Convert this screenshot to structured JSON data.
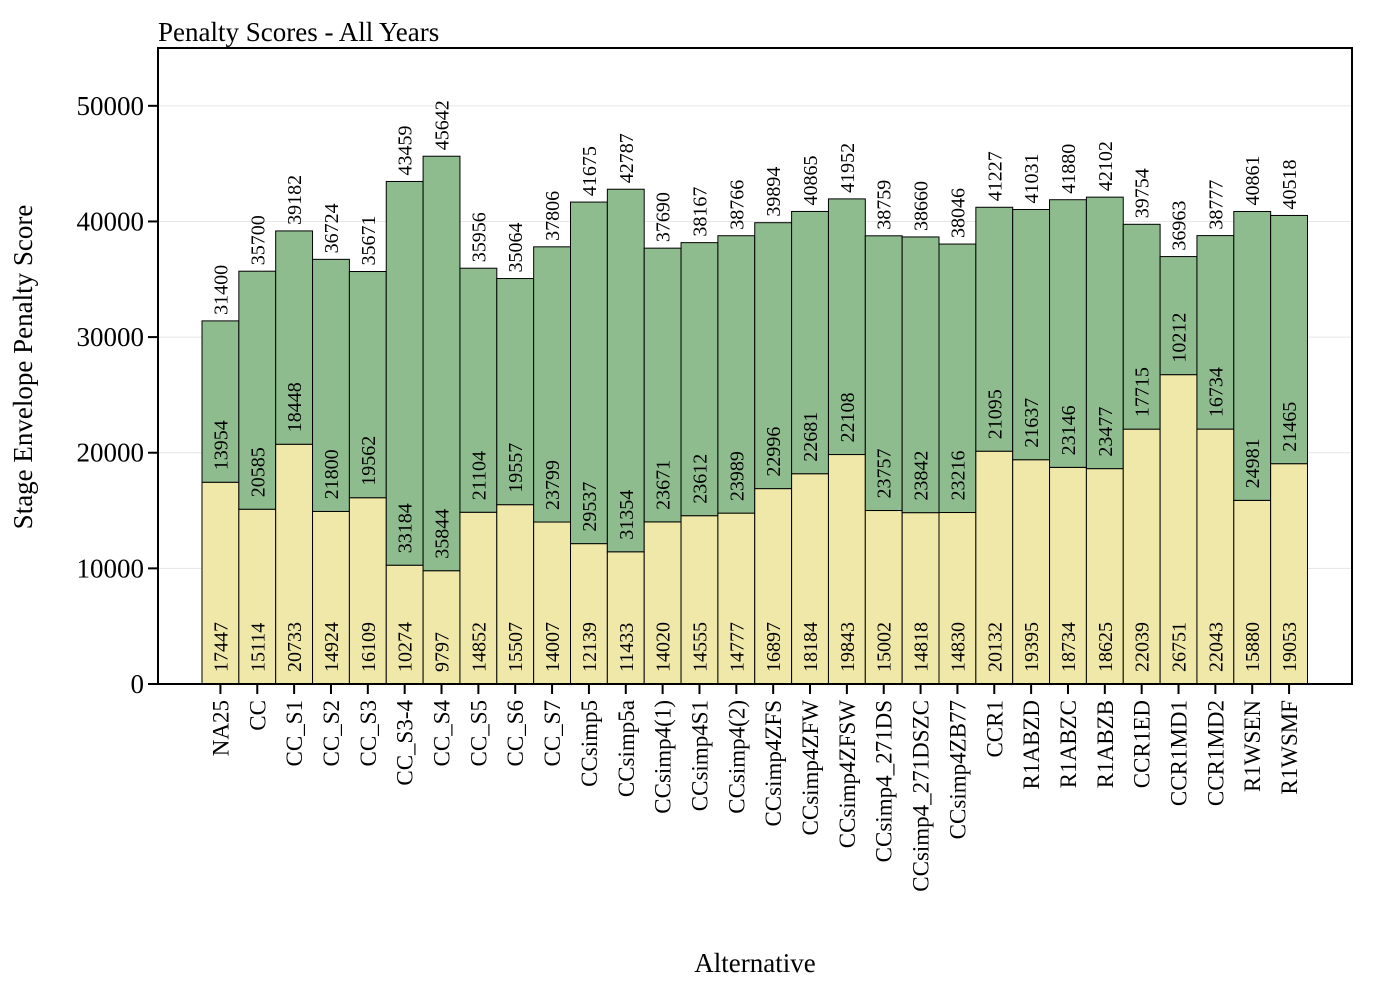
{
  "chart_data": {
    "type": "bar",
    "stacked": true,
    "title": "Penalty Scores - All Years",
    "xlabel": "Alternative",
    "ylabel": "Stage Envelope Penalty Score",
    "ylim": [
      0,
      55000
    ],
    "yticks": [
      0,
      10000,
      20000,
      30000,
      40000,
      50000
    ],
    "grid": "horizontal",
    "categories": [
      "NA25",
      "CC",
      "CC_S1",
      "CC_S2",
      "CC_S3",
      "CC_S3-4",
      "CC_S4",
      "CC_S5",
      "CC_S6",
      "CC_S7",
      "CCsimp5",
      "CCsimp5a",
      "CCsimp4(1)",
      "CCsimp4S1",
      "CCsimp4(2)",
      "CCsimp4ZFS",
      "CCsimp4ZFW",
      "CCsimp4ZFSW",
      "CCsimp4_271DS",
      "CCsimp4_271DSZC",
      "CCsimp4ZB77",
      "CCR1",
      "R1ABZD",
      "R1ABZC",
      "R1ABZB",
      "CCR1ED",
      "CCR1MD1",
      "CCR1MD2",
      "R1WSEN",
      "R1WSMF"
    ],
    "series": [
      {
        "color": "#efe8a8",
        "values": [
          17447,
          15114,
          20733,
          14924,
          16109,
          10274,
          9797,
          14852,
          15507,
          14007,
          12139,
          11433,
          14020,
          14555,
          14777,
          16897,
          18184,
          19843,
          15002,
          14818,
          14830,
          20132,
          19395,
          18734,
          18625,
          22039,
          26751,
          22043,
          15880,
          19053
        ]
      },
      {
        "color": "#8fbc8f",
        "values": [
          13954,
          20585,
          18448,
          21800,
          19562,
          33184,
          35844,
          21104,
          19557,
          23799,
          29537,
          31354,
          23671,
          23612,
          23989,
          22996,
          22681,
          22108,
          23757,
          23842,
          23216,
          21095,
          21637,
          23146,
          23477,
          17715,
          10212,
          16734,
          24981,
          21465
        ]
      }
    ],
    "totals": [
      31400,
      35700,
      39182,
      36724,
      35671,
      43459,
      45642,
      35956,
      35064,
      37806,
      41675,
      42787,
      37690,
      38167,
      38766,
      39894,
      40865,
      41952,
      38759,
      38660,
      38046,
      41227,
      41031,
      41880,
      42102,
      39754,
      36963,
      38777,
      40861,
      40518
    ]
  }
}
